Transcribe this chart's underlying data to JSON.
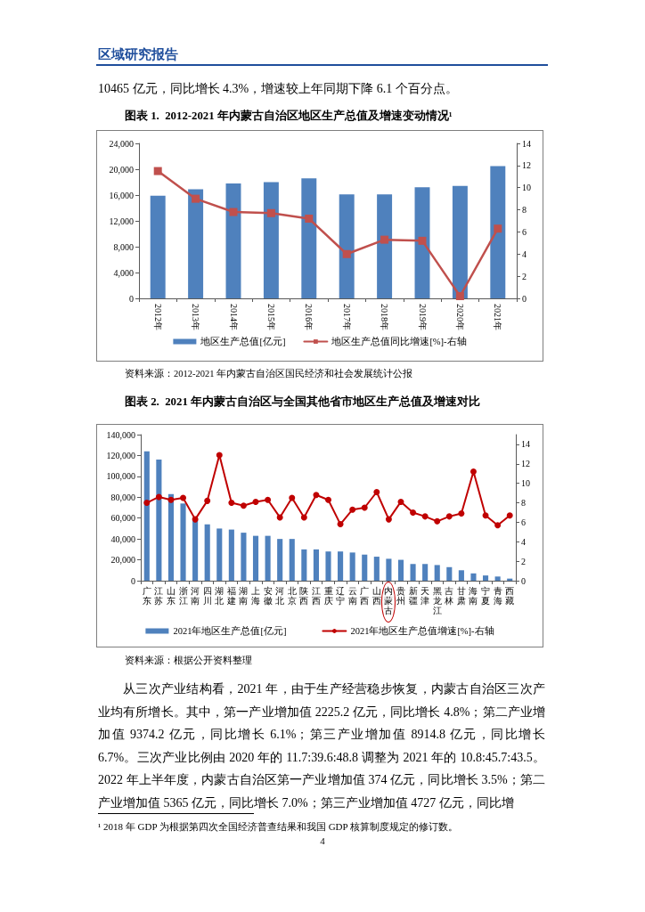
{
  "chart_data": [
    {
      "type": "bar",
      "title": "图表 1.  2012-2021 年内蒙古自治区地区生产总值及增速变动情况¹",
      "categories": [
        "2012年",
        "2013年",
        "2014年",
        "2015年",
        "2016年",
        "2017年",
        "2018年",
        "2019年",
        "2020年",
        "2021年"
      ],
      "series": [
        {
          "name": "地区生产总值[亿元]",
          "color": "#4f81bd",
          "values": [
            15900,
            16900,
            17800,
            18000,
            18600,
            16100,
            16100,
            17200,
            17400,
            20500
          ]
        },
        {
          "name": "地区生产总值同比增速[%]-右轴",
          "type": "line",
          "axis": "y2",
          "color": "#c0504d",
          "values": [
            11.5,
            9.0,
            7.8,
            7.7,
            7.2,
            4.0,
            5.3,
            5.2,
            0.2,
            6.3
          ]
        }
      ],
      "ylim": [
        0,
        24000
      ],
      "yticks": [
        0,
        {
          "value": 4000,
          "label": "4,000"
        },
        {
          "value": 8000,
          "label": "8,000"
        },
        {
          "value": 12000,
          "label": "12,000"
        },
        {
          "value": 16000,
          "label": "16,000"
        },
        {
          "value": 20000,
          "label": "20,000"
        },
        {
          "value": 24000,
          "label": "24,000"
        }
      ],
      "y2lim": [
        0,
        14
      ],
      "y2ticks": [
        0,
        2,
        4,
        6,
        8,
        10,
        12,
        14
      ],
      "marker": "square",
      "line_style": "solid",
      "legend": "bottom",
      "annotations": [
        "区域研究报告",
        "10465 亿元，同比增长 4.3%，增速较上年同期下降 6.1 个百分点。",
        "资料来源：2012-2021 年内蒙古自治区国民经济和社会发展统计公报"
      ]
    },
    {
      "type": "bar",
      "title": "图表 2.  2021 年内蒙古自治区与全国其他省市地区生产总值及增速对比",
      "categories": [
        "广东",
        "江苏",
        "山东",
        "浙江",
        "河南",
        "四川",
        "湖北",
        "福建",
        "湖南",
        "上海",
        "安徽",
        "河北",
        "北京",
        "陕西",
        "江西",
        "重庆",
        "辽宁",
        "云南",
        "广西",
        "山西",
        "内蒙古",
        "贵州",
        "新疆",
        "天津",
        "黑龙江",
        "吉林",
        "甘肃",
        "海南",
        "宁夏",
        "青海",
        "西藏"
      ],
      "series": [
        {
          "name": "2021年地区生产总值[亿元]",
          "color": "#4f81bd",
          "values": [
            124000,
            116000,
            83000,
            74000,
            59000,
            54000,
            50000,
            49000,
            46000,
            43000,
            43000,
            40000,
            40000,
            30000,
            30000,
            28000,
            28000,
            27000,
            25000,
            23000,
            21000,
            20000,
            16000,
            16000,
            15000,
            13000,
            10000,
            7000,
            5000,
            4000,
            2000
          ]
        },
        {
          "name": "2021年地区生产总值增速[%]-右轴",
          "type": "line",
          "axis": "y2",
          "color": "#c00000",
          "values": [
            8.0,
            8.6,
            8.3,
            8.5,
            6.3,
            8.2,
            12.9,
            8.0,
            7.7,
            8.1,
            8.3,
            6.5,
            8.5,
            6.5,
            8.8,
            8.3,
            5.8,
            7.3,
            7.5,
            9.1,
            6.3,
            8.1,
            7.0,
            6.6,
            6.1,
            6.6,
            6.9,
            11.2,
            6.7,
            5.7,
            6.7
          ]
        }
      ],
      "ylim": [
        0,
        140000
      ],
      "yticks": [
        0,
        {
          "value": 20000,
          "label": "20,000"
        },
        {
          "value": 40000,
          "label": "40,000"
        },
        {
          "value": 60000,
          "label": "60,000"
        },
        {
          "value": 80000,
          "label": "80,000"
        },
        {
          "value": 100000,
          "label": "100,000"
        },
        {
          "value": 120000,
          "label": "120,000"
        },
        {
          "value": 140000,
          "label": "140,000"
        }
      ],
      "y2lim": [
        0,
        15
      ],
      "y2ticks": [
        0,
        2,
        4,
        6,
        8,
        10,
        12,
        14
      ],
      "marker": "circle",
      "line_style": "solid",
      "legend": "bottom",
      "annotations": [
        "资料来源：根据公开资料整理",
        "从三次产业结构看，2021 年，由于生产经营稳步恢复，内蒙古自治区三次产业均有所增长。其中，第一产业增加值 2225.2 亿元，同比增长 4.8%；第二产业增加值 9374.2 亿元，同比增长 6.1%；第三产业增加值 8914.8 亿元，同比增长 6.7%。三次产业比例由 2020 年的 11.7:39.6:48.8 调整为 2021 年的 10.8:45.7:43.5。2022 年上半年度，内蒙古自治区第一产业增加值 374 亿元，同比增长 3.5%；第二产业增加值 5365 亿元，同比增长 7.0%；第三产业增加值 4727 亿元，同比增",
        "¹ 2018 年 GDP 为根据第四次全国经济普查结果和我国 GDP 核算制度规定的修订数。",
        "4"
      ]
    }
  ]
}
